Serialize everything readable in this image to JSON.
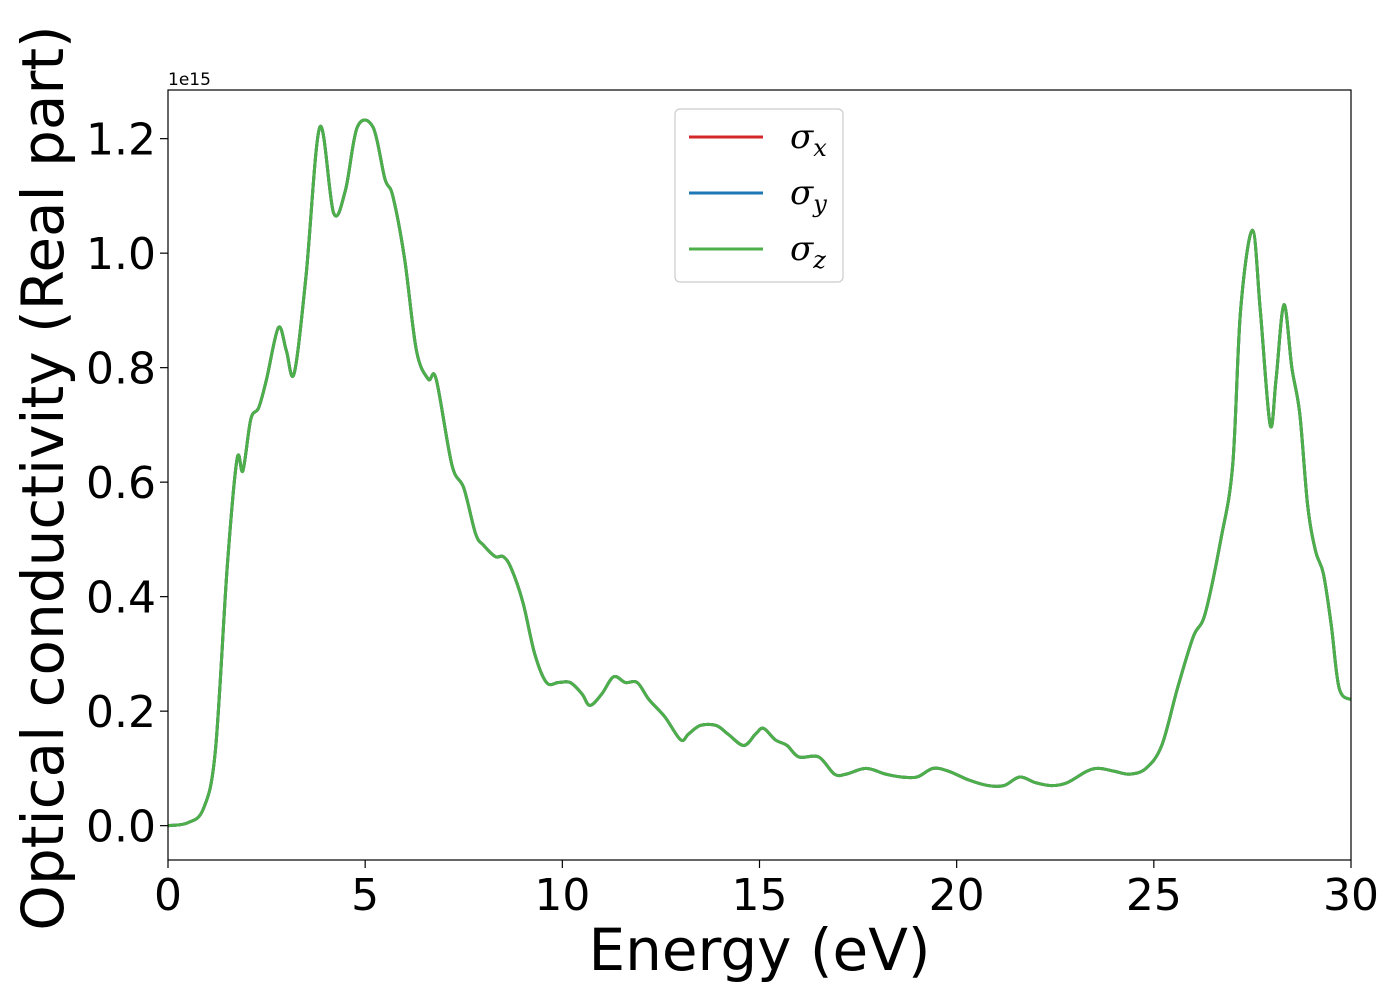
{
  "chart_data": {
    "type": "line",
    "xlabel": "Energy (eV)",
    "ylabel": "Optical conductivity (Real part)",
    "y_offset_label": "1e15",
    "xlim": [
      0,
      30
    ],
    "ylim": [
      -0.06,
      1.285
    ],
    "x_ticks": [
      0,
      5,
      10,
      15,
      20,
      25,
      30
    ],
    "x_tick_labels": [
      "0",
      "5",
      "10",
      "15",
      "20",
      "25",
      "30"
    ],
    "y_ticks": [
      0.0,
      0.2,
      0.4,
      0.6,
      0.8,
      1.0,
      1.2
    ],
    "y_tick_labels": [
      "0.0",
      "0.2",
      "0.4",
      "0.6",
      "0.8",
      "1.0",
      "1.2"
    ],
    "grid": false,
    "legend_position": "top-center",
    "x": [
      0.0,
      0.5,
      0.9,
      1.2,
      1.5,
      1.75,
      1.9,
      2.1,
      2.3,
      2.5,
      2.8,
      3.0,
      3.2,
      3.5,
      3.85,
      4.2,
      4.5,
      4.8,
      5.2,
      5.5,
      5.7,
      6.0,
      6.3,
      6.6,
      6.8,
      7.2,
      7.5,
      7.8,
      8.0,
      8.3,
      8.5,
      8.7,
      9.0,
      9.3,
      9.6,
      9.9,
      10.2,
      10.5,
      10.7,
      11.0,
      11.3,
      11.6,
      11.9,
      12.2,
      12.6,
      13.0,
      13.2,
      13.5,
      13.9,
      14.2,
      14.6,
      14.9,
      15.1,
      15.4,
      15.7,
      16.0,
      16.5,
      16.9,
      17.2,
      17.7,
      18.2,
      18.6,
      19.0,
      19.4,
      19.8,
      20.3,
      20.8,
      21.2,
      21.6,
      22.0,
      22.4,
      22.8,
      23.3,
      23.6,
      24.0,
      24.4,
      24.8,
      25.2,
      25.6,
      26.0,
      26.3,
      26.7,
      27.0,
      27.2,
      27.5,
      27.7,
      27.95,
      28.1,
      28.3,
      28.5,
      28.7,
      28.9,
      29.1,
      29.3,
      29.5,
      29.7,
      30.0
    ],
    "series": [
      {
        "name": "x",
        "color": "#d62728",
        "values": [
          0.0,
          0.005,
          0.03,
          0.13,
          0.45,
          0.64,
          0.62,
          0.71,
          0.73,
          0.78,
          0.87,
          0.83,
          0.79,
          0.96,
          1.22,
          1.07,
          1.11,
          1.22,
          1.22,
          1.13,
          1.1,
          0.99,
          0.83,
          0.78,
          0.78,
          0.63,
          0.59,
          0.51,
          0.49,
          0.47,
          0.47,
          0.45,
          0.39,
          0.3,
          0.25,
          0.25,
          0.25,
          0.23,
          0.21,
          0.23,
          0.26,
          0.25,
          0.25,
          0.22,
          0.19,
          0.15,
          0.16,
          0.175,
          0.175,
          0.16,
          0.14,
          0.16,
          0.17,
          0.15,
          0.14,
          0.12,
          0.12,
          0.09,
          0.09,
          0.1,
          0.09,
          0.085,
          0.085,
          0.1,
          0.095,
          0.08,
          0.07,
          0.07,
          0.085,
          0.075,
          0.07,
          0.075,
          0.095,
          0.1,
          0.095,
          0.09,
          0.1,
          0.14,
          0.24,
          0.33,
          0.37,
          0.5,
          0.63,
          0.9,
          1.04,
          0.9,
          0.7,
          0.78,
          0.91,
          0.8,
          0.72,
          0.56,
          0.48,
          0.44,
          0.35,
          0.24,
          0.22
        ]
      },
      {
        "name": "y",
        "color": "#1f77b4",
        "values": [
          0.0,
          0.005,
          0.03,
          0.13,
          0.45,
          0.64,
          0.62,
          0.71,
          0.73,
          0.78,
          0.87,
          0.83,
          0.79,
          0.96,
          1.22,
          1.07,
          1.11,
          1.22,
          1.22,
          1.13,
          1.1,
          0.99,
          0.83,
          0.78,
          0.78,
          0.63,
          0.59,
          0.51,
          0.49,
          0.47,
          0.47,
          0.45,
          0.39,
          0.3,
          0.25,
          0.25,
          0.25,
          0.23,
          0.21,
          0.23,
          0.26,
          0.25,
          0.25,
          0.22,
          0.19,
          0.15,
          0.16,
          0.175,
          0.175,
          0.16,
          0.14,
          0.16,
          0.17,
          0.15,
          0.14,
          0.12,
          0.12,
          0.09,
          0.09,
          0.1,
          0.09,
          0.085,
          0.085,
          0.1,
          0.095,
          0.08,
          0.07,
          0.07,
          0.085,
          0.075,
          0.07,
          0.075,
          0.095,
          0.1,
          0.095,
          0.09,
          0.1,
          0.14,
          0.24,
          0.33,
          0.37,
          0.5,
          0.63,
          0.9,
          1.04,
          0.9,
          0.7,
          0.78,
          0.91,
          0.8,
          0.72,
          0.56,
          0.48,
          0.44,
          0.35,
          0.24,
          0.22
        ]
      },
      {
        "name": "z",
        "color": "#4daf4a",
        "values": [
          0.0,
          0.005,
          0.03,
          0.13,
          0.45,
          0.64,
          0.62,
          0.71,
          0.73,
          0.78,
          0.87,
          0.83,
          0.79,
          0.96,
          1.22,
          1.07,
          1.11,
          1.22,
          1.22,
          1.13,
          1.1,
          0.99,
          0.83,
          0.78,
          0.78,
          0.63,
          0.59,
          0.51,
          0.49,
          0.47,
          0.47,
          0.45,
          0.39,
          0.3,
          0.25,
          0.25,
          0.25,
          0.23,
          0.21,
          0.23,
          0.26,
          0.25,
          0.25,
          0.22,
          0.19,
          0.15,
          0.16,
          0.175,
          0.175,
          0.16,
          0.14,
          0.16,
          0.17,
          0.15,
          0.14,
          0.12,
          0.12,
          0.09,
          0.09,
          0.1,
          0.09,
          0.085,
          0.085,
          0.1,
          0.095,
          0.08,
          0.07,
          0.07,
          0.085,
          0.075,
          0.07,
          0.075,
          0.095,
          0.1,
          0.095,
          0.09,
          0.1,
          0.14,
          0.24,
          0.33,
          0.37,
          0.5,
          0.63,
          0.9,
          1.04,
          0.9,
          0.7,
          0.78,
          0.91,
          0.8,
          0.72,
          0.56,
          0.48,
          0.44,
          0.35,
          0.24,
          0.22
        ]
      }
    ],
    "legend": [
      {
        "symbol": "σ",
        "subscript": "x",
        "color": "#d62728"
      },
      {
        "symbol": "σ",
        "subscript": "y",
        "color": "#1f77b4"
      },
      {
        "symbol": "σ",
        "subscript": "z",
        "color": "#4daf4a"
      }
    ]
  }
}
